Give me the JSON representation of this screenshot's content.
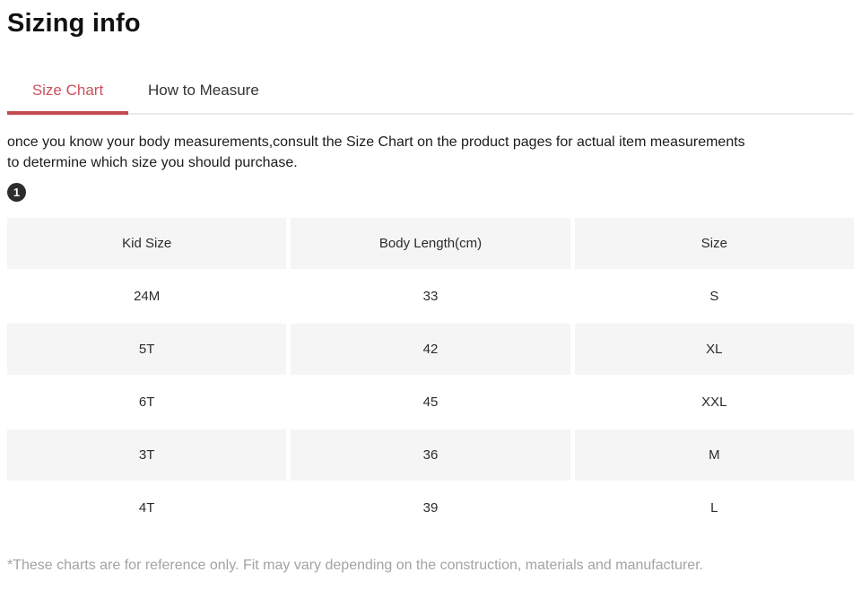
{
  "page": {
    "title": "Sizing info"
  },
  "tabs": {
    "items": [
      {
        "label": "Size Chart",
        "active": true
      },
      {
        "label": "How to Measure",
        "active": false
      }
    ]
  },
  "intro": {
    "line1": "once you know your body measurements,consult the Size Chart on the product pages for actual item measurements",
    "line2": "to determine which size you should purchase."
  },
  "badge": {
    "label": "1"
  },
  "size_table": {
    "columns": [
      "Kid Size",
      "Body Length(cm)",
      "Size"
    ],
    "rows": [
      [
        "24M",
        "33",
        "S"
      ],
      [
        "5T",
        "42",
        "XL"
      ],
      [
        "6T",
        "45",
        "XXL"
      ],
      [
        "3T",
        "36",
        "M"
      ],
      [
        "4T",
        "39",
        "L"
      ]
    ]
  },
  "footnote": {
    "text": "*These charts are for reference only. Fit may vary depending on the construction, materials and manufacturer."
  },
  "colors": {
    "accent_text": "#c9515c",
    "accent_underline": "#c24a52",
    "tab_divider": "#e9e9e9",
    "table_shaded_row": "#f5f5f5",
    "badge_bg": "#2d2d2d",
    "muted_text": "#a3a3a3",
    "body_text": "#1f1f1f"
  }
}
